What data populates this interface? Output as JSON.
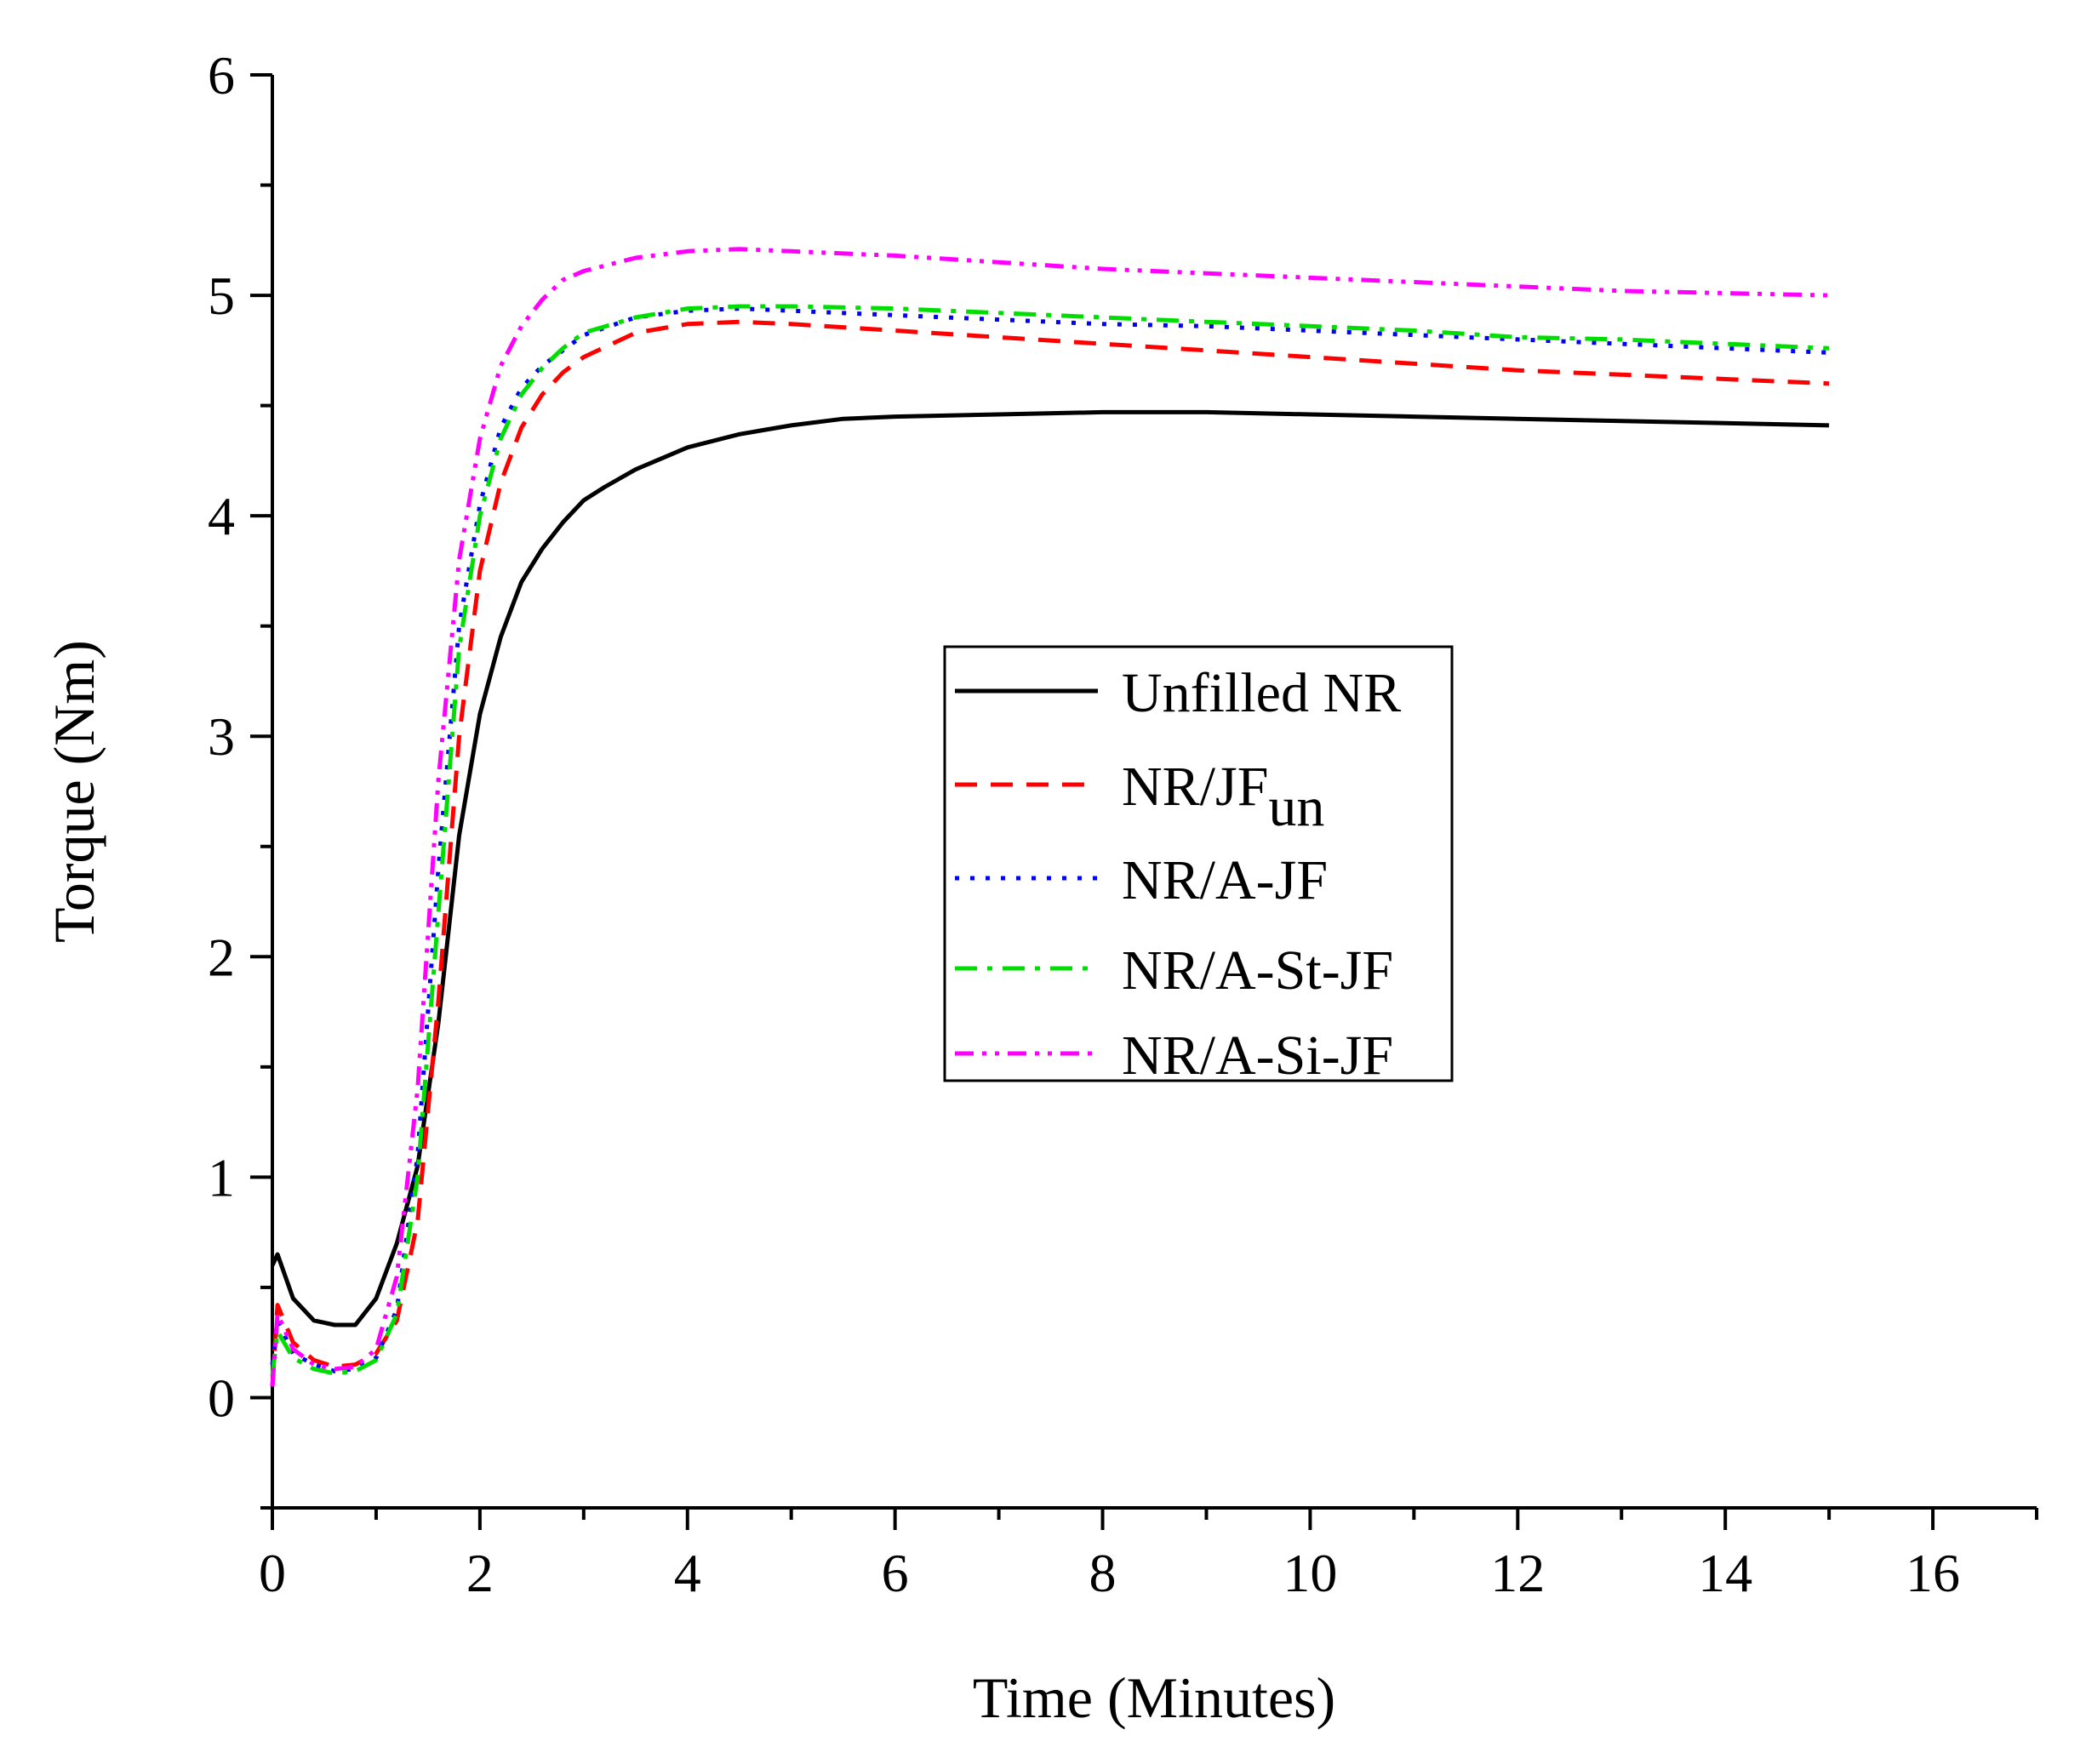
{
  "chart_data": {
    "type": "line",
    "title": "",
    "xlabel": "Time (Minutes)",
    "ylabel": "Torque (Nm)",
    "xlim": [
      0,
      17
    ],
    "ylim": [
      -0.5,
      6
    ],
    "x_ticks": [
      0,
      2,
      4,
      6,
      8,
      10,
      12,
      14,
      16
    ],
    "y_ticks": [
      0,
      1,
      2,
      3,
      4,
      5,
      6
    ],
    "legend_position": "center-right",
    "series": [
      {
        "name": "Unfilled NR",
        "color": "#000000",
        "dash": "solid",
        "points": [
          [
            0,
            0.6
          ],
          [
            0.05,
            0.65
          ],
          [
            0.2,
            0.45
          ],
          [
            0.4,
            0.35
          ],
          [
            0.6,
            0.33
          ],
          [
            0.8,
            0.33
          ],
          [
            1.0,
            0.45
          ],
          [
            1.2,
            0.7
          ],
          [
            1.4,
            1.05
          ],
          [
            1.6,
            1.7
          ],
          [
            1.8,
            2.55
          ],
          [
            2.0,
            3.1
          ],
          [
            2.2,
            3.45
          ],
          [
            2.4,
            3.7
          ],
          [
            2.6,
            3.85
          ],
          [
            2.8,
            3.97
          ],
          [
            3.0,
            4.07
          ],
          [
            3.2,
            4.13
          ],
          [
            3.5,
            4.21
          ],
          [
            3.8,
            4.27
          ],
          [
            4.0,
            4.31
          ],
          [
            4.5,
            4.37
          ],
          [
            5.0,
            4.41
          ],
          [
            5.5,
            4.44
          ],
          [
            6.0,
            4.45
          ],
          [
            7.0,
            4.46
          ],
          [
            8.0,
            4.47
          ],
          [
            9.0,
            4.47
          ],
          [
            10.0,
            4.46
          ],
          [
            11.0,
            4.45
          ],
          [
            12.0,
            4.44
          ],
          [
            13.0,
            4.43
          ],
          [
            14.0,
            4.42
          ],
          [
            15.0,
            4.41
          ]
        ]
      },
      {
        "name": "NR/JF",
        "subscript": "un",
        "color": "#ff0000",
        "dash": "dashed",
        "points": [
          [
            0,
            0.05
          ],
          [
            0.05,
            0.42
          ],
          [
            0.2,
            0.25
          ],
          [
            0.4,
            0.17
          ],
          [
            0.6,
            0.14
          ],
          [
            0.8,
            0.15
          ],
          [
            1.0,
            0.2
          ],
          [
            1.2,
            0.35
          ],
          [
            1.4,
            0.8
          ],
          [
            1.6,
            1.8
          ],
          [
            1.8,
            3.0
          ],
          [
            2.0,
            3.75
          ],
          [
            2.2,
            4.15
          ],
          [
            2.4,
            4.4
          ],
          [
            2.6,
            4.55
          ],
          [
            2.8,
            4.65
          ],
          [
            3.0,
            4.72
          ],
          [
            3.5,
            4.83
          ],
          [
            4.0,
            4.87
          ],
          [
            4.5,
            4.88
          ],
          [
            5.0,
            4.87
          ],
          [
            6.0,
            4.84
          ],
          [
            7.0,
            4.81
          ],
          [
            8.0,
            4.78
          ],
          [
            9.0,
            4.75
          ],
          [
            10.0,
            4.72
          ],
          [
            11.0,
            4.69
          ],
          [
            12.0,
            4.66
          ],
          [
            13.0,
            4.64
          ],
          [
            14.0,
            4.62
          ],
          [
            15.0,
            4.6
          ]
        ]
      },
      {
        "name": "NR/A-JF",
        "color": "#0000ff",
        "dash": "dotted",
        "points": [
          [
            0,
            0.15
          ],
          [
            0.05,
            0.35
          ],
          [
            0.2,
            0.2
          ],
          [
            0.4,
            0.15
          ],
          [
            0.6,
            0.12
          ],
          [
            0.8,
            0.13
          ],
          [
            1.0,
            0.18
          ],
          [
            1.2,
            0.4
          ],
          [
            1.4,
            1.1
          ],
          [
            1.6,
            2.4
          ],
          [
            1.8,
            3.5
          ],
          [
            2.0,
            4.05
          ],
          [
            2.2,
            4.4
          ],
          [
            2.4,
            4.58
          ],
          [
            2.6,
            4.68
          ],
          [
            2.8,
            4.75
          ],
          [
            3.0,
            4.82
          ],
          [
            3.5,
            4.9
          ],
          [
            4.0,
            4.93
          ],
          [
            4.5,
            4.94
          ],
          [
            5.0,
            4.93
          ],
          [
            6.0,
            4.91
          ],
          [
            7.0,
            4.89
          ],
          [
            8.0,
            4.87
          ],
          [
            9.0,
            4.86
          ],
          [
            10.0,
            4.84
          ],
          [
            11.0,
            4.82
          ],
          [
            12.0,
            4.8
          ],
          [
            13.0,
            4.78
          ],
          [
            14.0,
            4.76
          ],
          [
            15.0,
            4.74
          ]
        ]
      },
      {
        "name": "NR/A-St-JF",
        "color": "#00dd00",
        "dash": "dash-dot",
        "points": [
          [
            0,
            0.1
          ],
          [
            0.05,
            0.3
          ],
          [
            0.2,
            0.18
          ],
          [
            0.4,
            0.13
          ],
          [
            0.6,
            0.11
          ],
          [
            0.8,
            0.12
          ],
          [
            1.0,
            0.17
          ],
          [
            1.2,
            0.38
          ],
          [
            1.4,
            1.0
          ],
          [
            1.6,
            2.2
          ],
          [
            1.8,
            3.4
          ],
          [
            2.0,
            4.0
          ],
          [
            2.2,
            4.35
          ],
          [
            2.4,
            4.55
          ],
          [
            2.6,
            4.67
          ],
          [
            2.8,
            4.76
          ],
          [
            3.0,
            4.83
          ],
          [
            3.5,
            4.9
          ],
          [
            4.0,
            4.94
          ],
          [
            4.5,
            4.95
          ],
          [
            5.0,
            4.95
          ],
          [
            6.0,
            4.94
          ],
          [
            7.0,
            4.92
          ],
          [
            8.0,
            4.9
          ],
          [
            9.0,
            4.88
          ],
          [
            10.0,
            4.86
          ],
          [
            11.0,
            4.84
          ],
          [
            12.0,
            4.81
          ],
          [
            13.0,
            4.8
          ],
          [
            14.0,
            4.78
          ],
          [
            15.0,
            4.76
          ]
        ]
      },
      {
        "name": "NR/A-Si-JF",
        "color": "#ff00ff",
        "dash": "dash-dot-dot",
        "points": [
          [
            0,
            0.05
          ],
          [
            0.05,
            0.38
          ],
          [
            0.2,
            0.22
          ],
          [
            0.4,
            0.15
          ],
          [
            0.6,
            0.13
          ],
          [
            0.8,
            0.14
          ],
          [
            1.0,
            0.22
          ],
          [
            1.2,
            0.55
          ],
          [
            1.4,
            1.4
          ],
          [
            1.6,
            2.8
          ],
          [
            1.8,
            3.8
          ],
          [
            2.0,
            4.35
          ],
          [
            2.2,
            4.68
          ],
          [
            2.4,
            4.86
          ],
          [
            2.6,
            4.98
          ],
          [
            2.8,
            5.07
          ],
          [
            3.0,
            5.11
          ],
          [
            3.5,
            5.17
          ],
          [
            4.0,
            5.2
          ],
          [
            4.5,
            5.21
          ],
          [
            5.0,
            5.2
          ],
          [
            6.0,
            5.18
          ],
          [
            7.0,
            5.15
          ],
          [
            8.0,
            5.12
          ],
          [
            9.0,
            5.1
          ],
          [
            10.0,
            5.08
          ],
          [
            11.0,
            5.06
          ],
          [
            12.0,
            5.04
          ],
          [
            13.0,
            5.02
          ],
          [
            14.0,
            5.01
          ],
          [
            15.0,
            5.0
          ]
        ]
      }
    ]
  }
}
